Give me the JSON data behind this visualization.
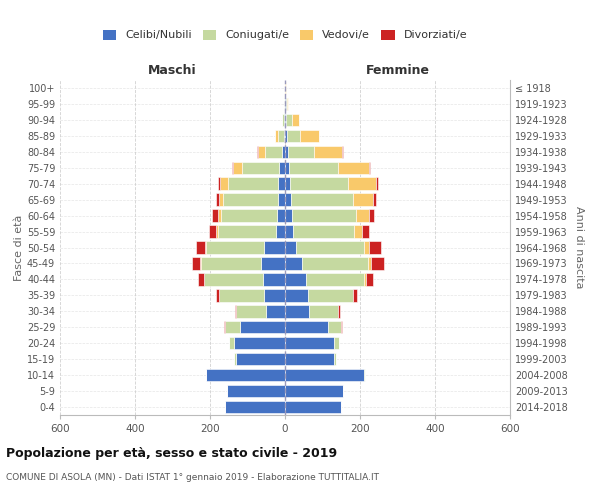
{
  "age_groups": [
    "0-4",
    "5-9",
    "10-14",
    "15-19",
    "20-24",
    "25-29",
    "30-34",
    "35-39",
    "40-44",
    "45-49",
    "50-54",
    "55-59",
    "60-64",
    "65-69",
    "70-74",
    "75-79",
    "80-84",
    "85-89",
    "90-94",
    "95-99",
    "100+"
  ],
  "birth_years": [
    "2014-2018",
    "2009-2013",
    "2004-2008",
    "1999-2003",
    "1994-1998",
    "1989-1993",
    "1984-1988",
    "1979-1983",
    "1974-1978",
    "1969-1973",
    "1964-1968",
    "1959-1963",
    "1954-1958",
    "1949-1953",
    "1944-1948",
    "1939-1943",
    "1934-1938",
    "1929-1933",
    "1924-1928",
    "1919-1923",
    "≤ 1918"
  ],
  "males_celibe": [
    160,
    155,
    210,
    130,
    135,
    120,
    50,
    55,
    60,
    65,
    55,
    25,
    22,
    20,
    18,
    15,
    8,
    4,
    2,
    1,
    0
  ],
  "males_coniugato": [
    0,
    0,
    2,
    5,
    15,
    40,
    80,
    120,
    155,
    160,
    155,
    155,
    150,
    145,
    135,
    100,
    45,
    15,
    5,
    1,
    0
  ],
  "males_vedovo": [
    0,
    0,
    0,
    0,
    0,
    0,
    0,
    0,
    1,
    2,
    3,
    5,
    8,
    12,
    20,
    25,
    20,
    8,
    2,
    0,
    0
  ],
  "males_divorziato": [
    0,
    0,
    0,
    0,
    0,
    2,
    3,
    8,
    15,
    20,
    25,
    18,
    15,
    8,
    5,
    2,
    1,
    1,
    0,
    0,
    0
  ],
  "fem_nubile": [
    150,
    155,
    210,
    130,
    130,
    115,
    65,
    60,
    55,
    45,
    30,
    20,
    18,
    15,
    12,
    10,
    8,
    5,
    3,
    2,
    1
  ],
  "fem_coniugata": [
    0,
    0,
    2,
    5,
    15,
    35,
    75,
    120,
    155,
    175,
    180,
    165,
    170,
    165,
    155,
    130,
    70,
    35,
    15,
    2,
    0
  ],
  "fem_vedova": [
    0,
    0,
    0,
    0,
    0,
    0,
    1,
    2,
    5,
    8,
    15,
    20,
    35,
    55,
    75,
    85,
    75,
    50,
    20,
    5,
    1
  ],
  "fem_divorziata": [
    0,
    0,
    0,
    0,
    0,
    2,
    5,
    10,
    20,
    35,
    30,
    18,
    15,
    8,
    5,
    2,
    2,
    1,
    0,
    0,
    0
  ],
  "color_celibe": "#4472c4",
  "color_coniugato": "#c5d9a0",
  "color_vedovo": "#f9c96a",
  "color_divorziato": "#cc2222",
  "xlim": 600,
  "title": "Popolazione per età, sesso e stato civile - 2019",
  "subtitle": "COMUNE DI ASOLA (MN) - Dati ISTAT 1° gennaio 2019 - Elaborazione TUTTITALIA.IT",
  "ylabel_left": "Fasce di età",
  "ylabel_right": "Anni di nascita",
  "header_left": "Maschi",
  "header_right": "Femmine",
  "legend_labels": [
    "Celibi/Nubili",
    "Coniugati/e",
    "Vedovi/e",
    "Divorziati/e"
  ],
  "bg_color": "#ffffff",
  "grid_color": "#cccccc",
  "xtick_vals": [
    -600,
    -400,
    -200,
    0,
    200,
    400,
    600
  ],
  "xtick_labels": [
    "600",
    "400",
    "200",
    "0",
    "200",
    "400",
    "600"
  ]
}
